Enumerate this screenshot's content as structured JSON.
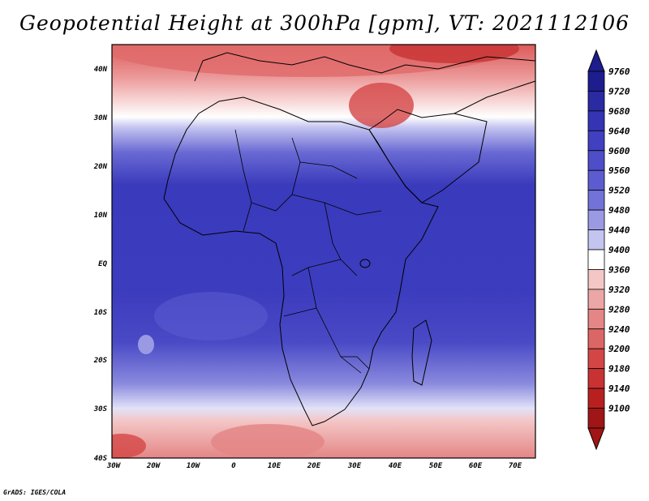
{
  "title": "Geopotential Height at 300hPa [gpm], VT: 2021112106",
  "credit": "GrADS: IGES/COLA",
  "map": {
    "lat_labels": [
      "40N",
      "30N",
      "20N",
      "10N",
      "EQ",
      "10S",
      "20S",
      "30S",
      "40S"
    ],
    "lon_labels": [
      "30W",
      "20W",
      "10W",
      "0",
      "10E",
      "20E",
      "30E",
      "40E",
      "50E",
      "60E",
      "70E"
    ]
  },
  "colorbar": {
    "levels": [
      "9760",
      "9720",
      "9680",
      "9640",
      "9600",
      "9560",
      "9520",
      "9480",
      "9440",
      "9400",
      "9360",
      "9320",
      "9280",
      "9240",
      "9200",
      "9180",
      "9140",
      "9100"
    ],
    "colors": [
      "#1e1d8e",
      "#2a2aa2",
      "#3434b4",
      "#4040c0",
      "#4e4ec8",
      "#5c5cd0",
      "#7272d8",
      "#9a9ae4",
      "#c4c4f0",
      "#ffffff",
      "#f4c6c6",
      "#eca6a6",
      "#e48686",
      "#dc6666",
      "#d44646",
      "#c83232",
      "#b82020",
      "#a01515"
    ]
  }
}
